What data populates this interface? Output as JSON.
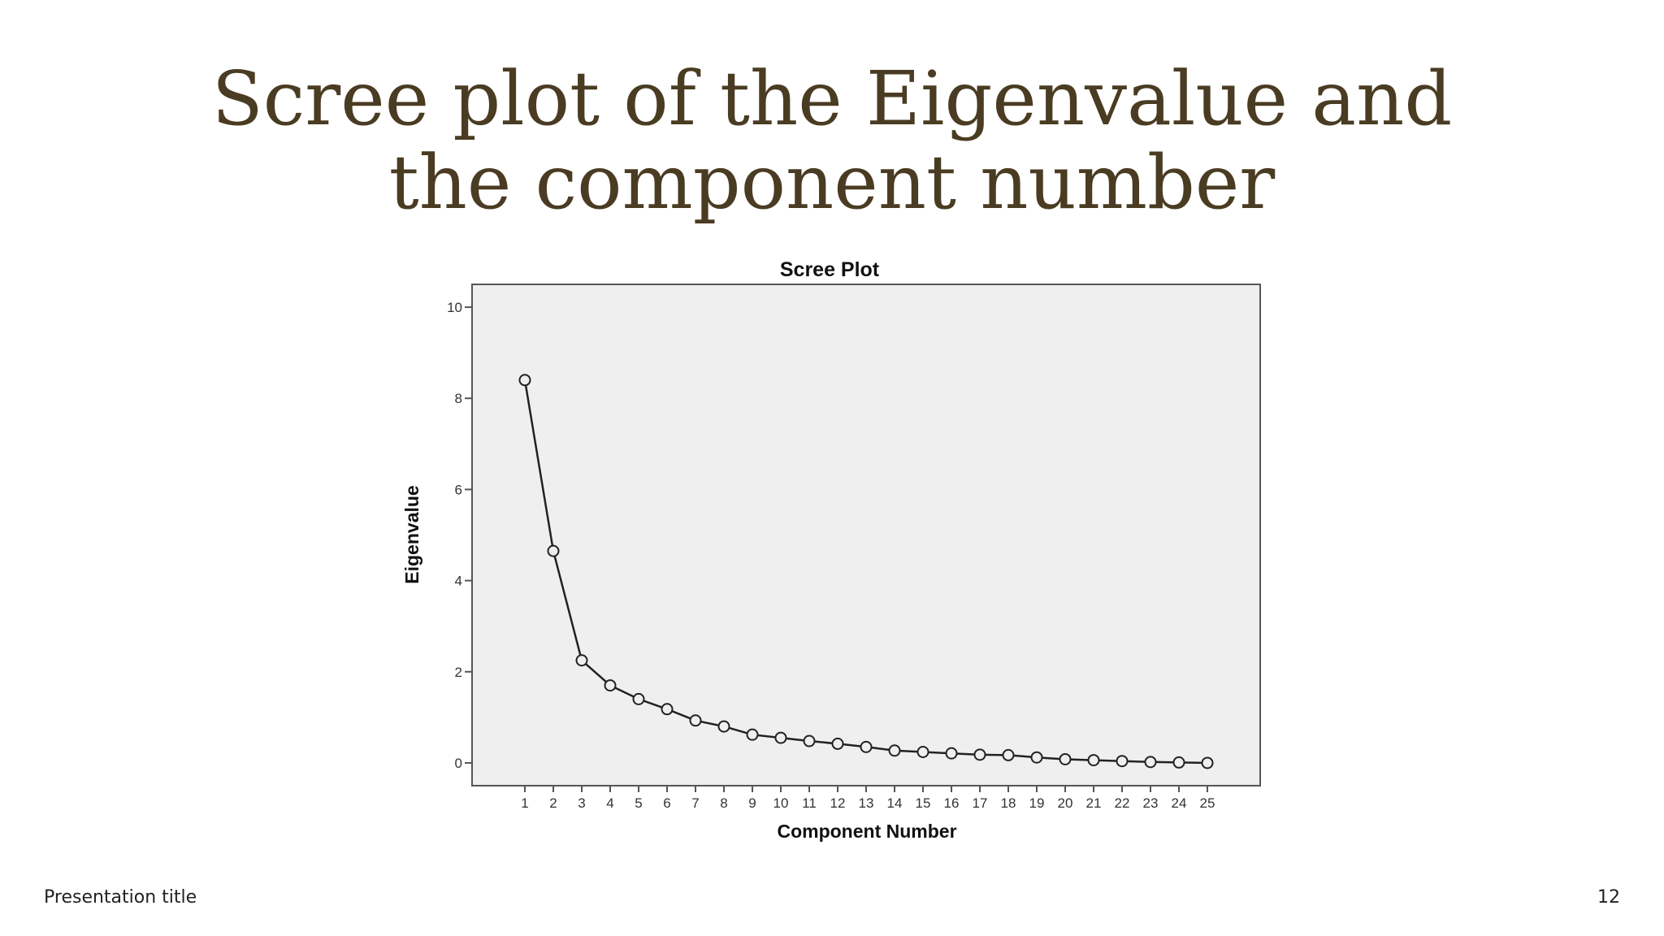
{
  "slide": {
    "title": "Scree plot of the Eigenvalue and the component number",
    "footer_text": "Presentation title",
    "page_number": "12"
  },
  "colors": {
    "title": "#4a3c22",
    "plot_background": "#efefef",
    "line": "#222222"
  },
  "chart_data": {
    "type": "line",
    "title": "Scree Plot",
    "xlabel": "Component Number",
    "ylabel": "Eigenvalue",
    "ylim": [
      -0.5,
      10.5
    ],
    "y_ticks": [
      0,
      2,
      4,
      6,
      8,
      10
    ],
    "x": [
      1,
      2,
      3,
      4,
      5,
      6,
      7,
      8,
      9,
      10,
      11,
      12,
      13,
      14,
      15,
      16,
      17,
      18,
      19,
      20,
      21,
      22,
      23,
      24,
      25
    ],
    "values": [
      8.4,
      4.65,
      2.25,
      1.7,
      1.4,
      1.18,
      0.93,
      0.8,
      0.62,
      0.55,
      0.48,
      0.42,
      0.35,
      0.27,
      0.24,
      0.21,
      0.18,
      0.17,
      0.12,
      0.08,
      0.06,
      0.04,
      0.02,
      0.01,
      0.0
    ],
    "grid": false,
    "marker": "open-circle"
  }
}
